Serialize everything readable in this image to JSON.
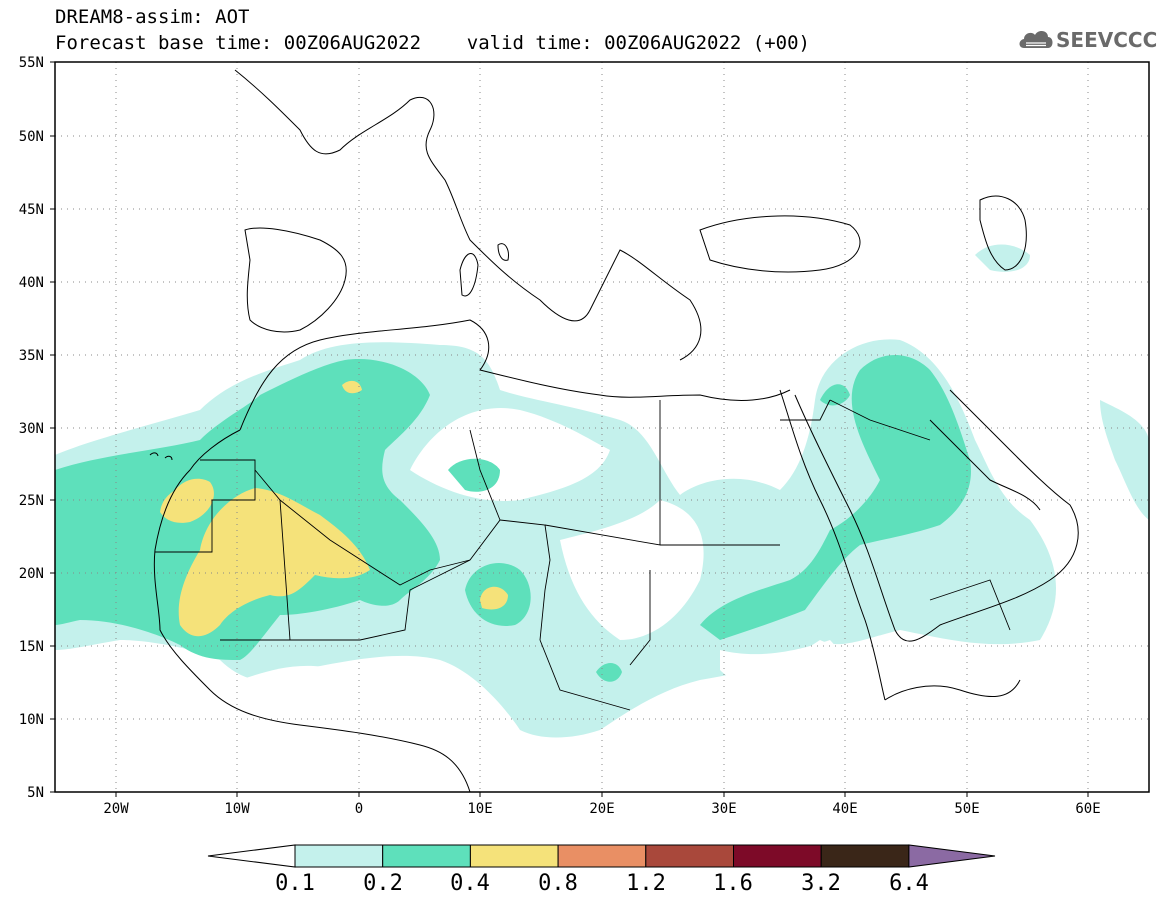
{
  "header": {
    "line1": "DREAM8-assim: AOT",
    "line2": "Forecast base time: 00Z06AUG2022    valid time: 00Z06AUG2022 (+00)"
  },
  "logo": {
    "text": "SEEVCCC",
    "icon": "cloud-icon"
  },
  "map": {
    "lon_range": [
      -25,
      65
    ],
    "lat_range": [
      5,
      55
    ],
    "lat_ticks": [
      "55N",
      "50N",
      "45N",
      "40N",
      "35N",
      "30N",
      "25N",
      "20N",
      "15N",
      "10N",
      "5N"
    ],
    "lon_ticks": [
      "20W",
      "10W",
      "0",
      "10E",
      "20E",
      "30E",
      "40E",
      "50E",
      "60E"
    ],
    "gridlines": "dotted"
  },
  "colorbar": {
    "labels": [
      "0.1",
      "0.2",
      "0.4",
      "0.8",
      "1.2",
      "1.6",
      "3.2",
      "6.4"
    ],
    "colors": [
      "#ffffff",
      "#c4f1ec",
      "#5ee0bb",
      "#f5e27a",
      "#e98f64",
      "#a9483b",
      "#7d0a28",
      "#3a2618",
      "#8b6aa3"
    ]
  },
  "colors": {
    "level1": "#c4f1ec",
    "level2": "#5ee0bb",
    "level3": "#f5e27a",
    "coast": "#000000"
  }
}
